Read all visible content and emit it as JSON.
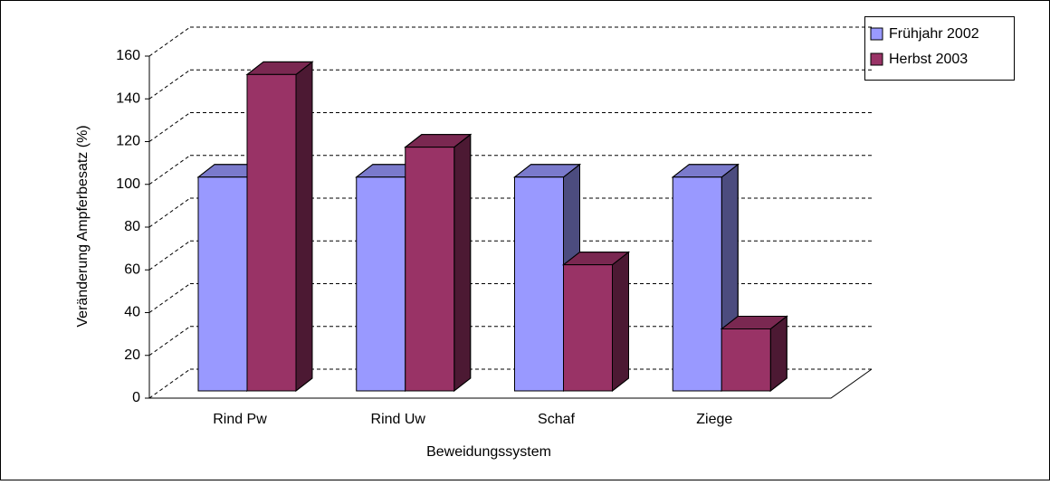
{
  "chart_data": {
    "type": "bar3d",
    "categories": [
      "Rind Pw",
      "Rind Uw",
      "Schaf",
      "Ziege"
    ],
    "series": [
      {
        "name": "Frühjahr 2002",
        "color": "#9999ff",
        "values": [
          100,
          100,
          100,
          100
        ]
      },
      {
        "name": "Herbst 2003",
        "color": "#993366",
        "values": [
          148,
          114,
          59,
          29
        ]
      }
    ],
    "ylabel": "Veränderung Ampferbesatz (%)",
    "xlabel": "Beweidungssystem",
    "ylim": [
      0,
      160
    ],
    "yticks": [
      0,
      20,
      40,
      60,
      80,
      100,
      120,
      140,
      160
    ],
    "grid": true,
    "legend": "top-right"
  }
}
